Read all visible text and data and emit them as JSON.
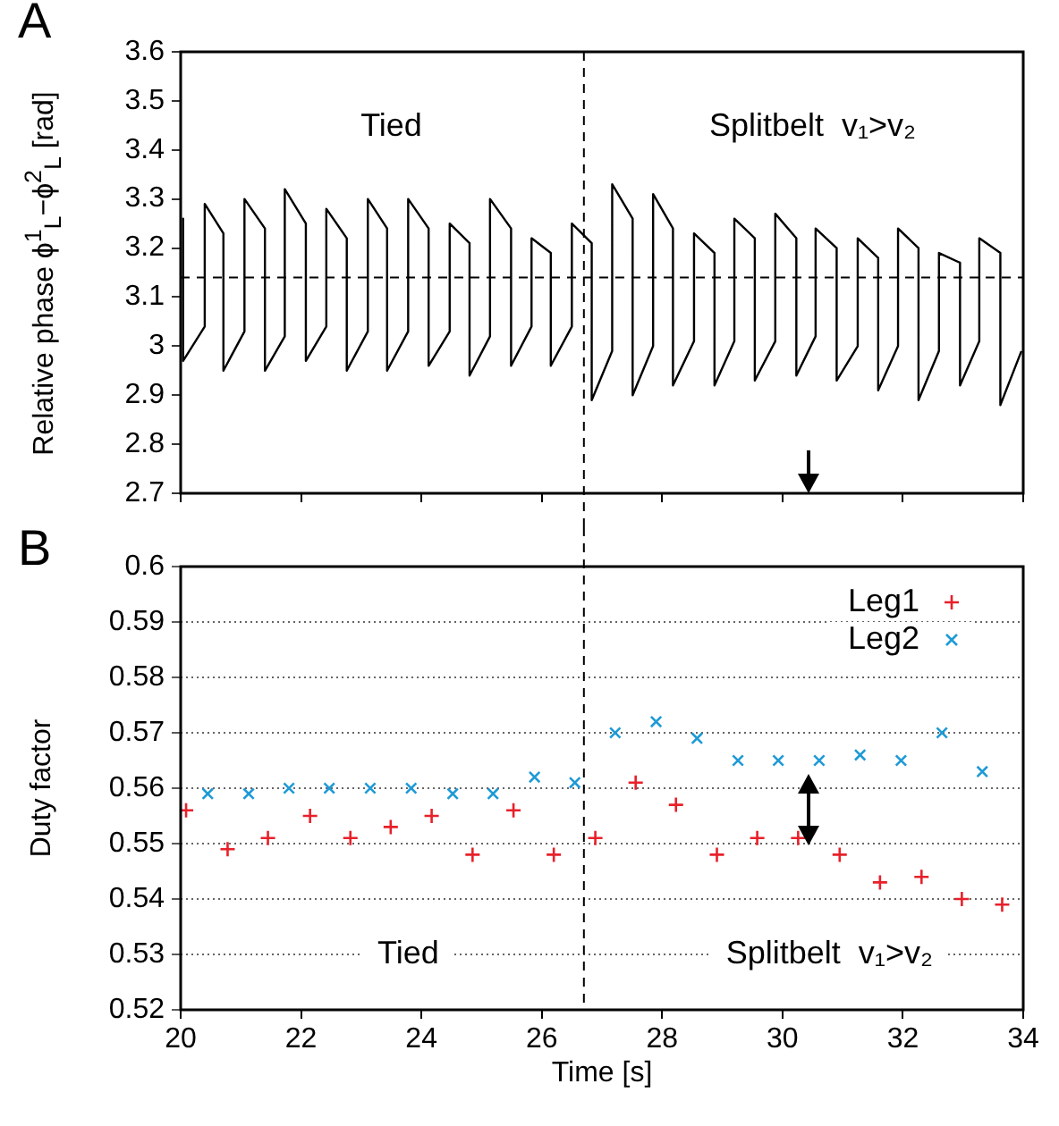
{
  "chart_data": [
    {
      "type": "line",
      "title": "A",
      "ylabel": "Relative phase ϕ$^{1}$$_{L}$−ϕ$^{2}$$_{L}$ [rad]",
      "color": "#000000",
      "marker": "none",
      "line_style": "solid",
      "tick_labels": "y",
      "x": [
        20.04,
        20.04,
        20.4,
        20.4,
        20.71,
        20.71,
        21.06,
        21.06,
        21.4,
        21.4,
        21.73,
        21.73,
        22.08,
        22.08,
        22.42,
        22.42,
        22.76,
        22.76,
        23.11,
        23.11,
        23.43,
        23.43,
        23.78,
        23.78,
        24.12,
        24.12,
        24.47,
        24.47,
        24.8,
        24.8,
        25.14,
        25.14,
        25.49,
        25.49,
        25.83,
        25.83,
        26.15,
        26.15,
        26.5,
        26.5,
        26.83,
        26.83,
        27.17,
        27.17,
        27.51,
        27.51,
        27.85,
        27.85,
        28.18,
        28.18,
        28.53,
        28.53,
        28.87,
        28.87,
        29.2,
        29.2,
        29.54,
        29.54,
        29.88,
        29.88,
        30.23,
        30.23,
        30.55,
        30.55,
        30.9,
        30.9,
        31.25,
        31.25,
        31.59,
        31.59,
        31.92,
        31.92,
        32.26,
        32.26,
        32.6,
        32.6,
        32.95,
        32.95,
        33.27,
        33.27,
        33.62,
        33.62,
        33.97
      ],
      "values": [
        3.26,
        2.97,
        3.04,
        3.29,
        3.23,
        2.95,
        3.03,
        3.3,
        3.24,
        2.95,
        3.02,
        3.32,
        3.25,
        2.97,
        3.04,
        3.28,
        3.22,
        2.95,
        3.03,
        3.3,
        3.24,
        2.95,
        3.03,
        3.3,
        3.24,
        2.96,
        3.03,
        3.25,
        3.21,
        2.94,
        3.02,
        3.3,
        3.24,
        2.96,
        3.04,
        3.22,
        3.19,
        2.96,
        3.04,
        3.25,
        3.21,
        2.89,
        2.99,
        3.33,
        3.26,
        2.9,
        3.0,
        3.31,
        3.24,
        2.92,
        3.01,
        3.23,
        3.19,
        2.92,
        3.01,
        3.26,
        3.22,
        2.93,
        3.01,
        3.27,
        3.22,
        2.94,
        3.02,
        3.24,
        3.2,
        2.93,
        3.0,
        3.22,
        3.18,
        2.91,
        3.0,
        3.24,
        3.2,
        2.89,
        2.99,
        3.19,
        3.17,
        2.92,
        3.01,
        3.22,
        3.19,
        2.88,
        2.99
      ],
      "xlim": [
        20,
        34
      ],
      "xticks": [
        20,
        22,
        24,
        26,
        28,
        30,
        32,
        34
      ],
      "ylim": [
        2.7,
        3.6
      ],
      "yticks": [
        2.7,
        2.8,
        2.9,
        3,
        3.1,
        3.2,
        3.3,
        3.4,
        3.5,
        3.6
      ],
      "ref_lines": [
        {
          "axis": "y",
          "value": 3.14,
          "line_style": "dashed",
          "color": "#000000"
        },
        {
          "axis": "x",
          "value": 26.7,
          "line_style": "dashed",
          "color": "#000000"
        }
      ],
      "annotations": [
        "Tied",
        "Splitbelt  v₁>v₂"
      ]
    },
    {
      "type": "scatter",
      "title": "B",
      "xlabel": "Time [s]",
      "ylabel": "Duty factor",
      "marker": "cross",
      "grid": "y",
      "legend": "top right",
      "series": [
        {
          "name": "Leg1",
          "color": "#e8202a",
          "x": [
            20.09,
            20.78,
            21.45,
            22.15,
            22.82,
            23.49,
            24.17,
            24.85,
            25.53,
            26.2,
            26.89,
            27.56,
            28.23,
            28.91,
            29.58,
            30.26,
            30.95,
            31.62,
            32.31,
            32.98,
            33.65
          ],
          "values": [
            0.556,
            0.549,
            0.551,
            0.555,
            0.551,
            0.553,
            0.555,
            0.548,
            0.556,
            0.548,
            0.551,
            0.561,
            0.557,
            0.548,
            0.551,
            0.551,
            0.548,
            0.543,
            0.544,
            0.54,
            0.539
          ]
        },
        {
          "name": "Leg2",
          "color": "#1e9ad6",
          "x": [
            20.45,
            21.13,
            21.8,
            22.47,
            23.15,
            23.83,
            24.52,
            25.19,
            25.88,
            26.55,
            27.22,
            27.9,
            28.58,
            29.26,
            29.93,
            30.61,
            31.29,
            31.97,
            32.65,
            33.32
          ],
          "values": [
            0.559,
            0.559,
            0.56,
            0.56,
            0.56,
            0.56,
            0.559,
            0.559,
            0.562,
            0.561,
            0.57,
            0.572,
            0.569,
            0.565,
            0.565,
            0.565,
            0.566,
            0.565,
            0.57,
            0.563
          ]
        }
      ],
      "xlim": [
        20,
        34
      ],
      "xticks": [
        20,
        22,
        24,
        26,
        28,
        30,
        32,
        34
      ],
      "ylim": [
        0.52,
        0.6
      ],
      "yticks": [
        0.52,
        0.53,
        0.54,
        0.55,
        0.56,
        0.57,
        0.58,
        0.59,
        0.6
      ],
      "ref_lines": [
        {
          "axis": "x",
          "value": 26.7,
          "line_style": "dashed",
          "color": "#000000"
        }
      ],
      "annotations": [
        "Tied",
        "Splitbelt  v₁>v₂"
      ]
    }
  ]
}
